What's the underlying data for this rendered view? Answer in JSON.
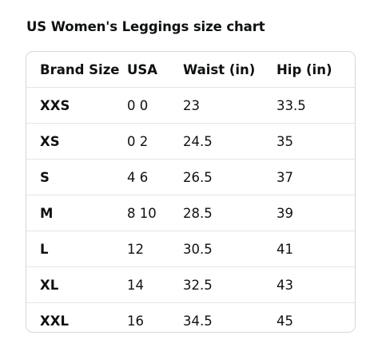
{
  "title": "US Women's Leggings size chart",
  "table": {
    "headers": [
      "Brand Size",
      "USA",
      "Waist (in)",
      "Hip (in)"
    ],
    "rows": [
      [
        "XXS",
        "0 0",
        "23",
        "33.5"
      ],
      [
        "XS",
        "0 2",
        "24.5",
        "35"
      ],
      [
        "S",
        "4 6",
        "26.5",
        "37"
      ],
      [
        "M",
        "8 10",
        "28.5",
        "39"
      ],
      [
        "L",
        "12",
        "30.5",
        "41"
      ],
      [
        "XL",
        "14",
        "32.5",
        "43"
      ],
      [
        "XXL",
        "16",
        "34.5",
        "45"
      ]
    ]
  }
}
